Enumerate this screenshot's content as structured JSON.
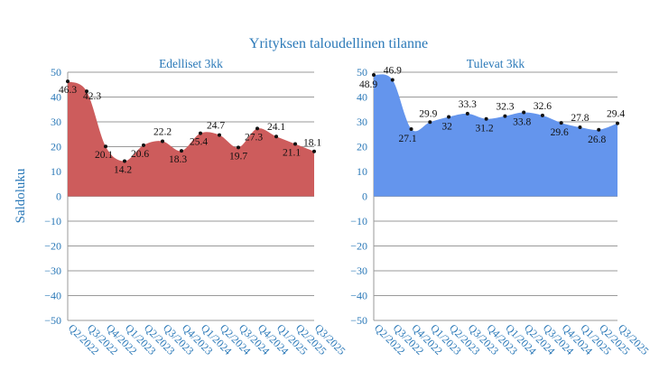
{
  "title": "Yrityksen taloudellinen tilanne",
  "ylabel": "Saldoluku",
  "chart_data": [
    {
      "type": "area",
      "title": "Edelliset 3kk",
      "ylabel": "Saldoluku",
      "color": "#cd5c5c",
      "ylim": [
        -50,
        50
      ],
      "yticks": [
        -50,
        -40,
        -30,
        -20,
        -10,
        0,
        10,
        20,
        30,
        40,
        50
      ],
      "grid": true,
      "categories": [
        "Q2/2022",
        "Q3/2022",
        "Q4/2022",
        "Q1/2023",
        "Q2/2023",
        "Q3/2023",
        "Q4/2023",
        "Q1/2024",
        "Q2/2024",
        "Q3/2024",
        "Q4/2024",
        "Q1/2025",
        "Q2/2025",
        "Q3/2025"
      ],
      "values": [
        46.3,
        42.3,
        20.1,
        14.2,
        20.6,
        22.2,
        18.3,
        25.4,
        24.7,
        19.7,
        27.3,
        24.1,
        21.1,
        18.1
      ]
    },
    {
      "type": "area",
      "title": "Tulevat 3kk",
      "color": "#6495ed",
      "ylim": [
        -50,
        50
      ],
      "yticks": [
        -50,
        -40,
        -30,
        -20,
        -10,
        0,
        10,
        20,
        30,
        40,
        50
      ],
      "grid": true,
      "categories": [
        "Q2/2022",
        "Q3/2022",
        "Q4/2022",
        "Q1/2023",
        "Q2/2023",
        "Q3/2023",
        "Q4/2023",
        "Q1/2024",
        "Q2/2024",
        "Q3/2024",
        "Q4/2024",
        "Q1/2025",
        "Q2/2025",
        "Q3/2025"
      ],
      "values": [
        48.9,
        46.9,
        27.1,
        29.9,
        32,
        33.3,
        31.2,
        32.3,
        33.8,
        32.6,
        29.6,
        27.8,
        26.8,
        29.4
      ]
    }
  ]
}
